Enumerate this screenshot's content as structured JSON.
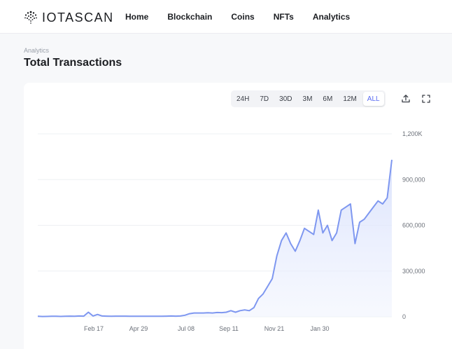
{
  "app": {
    "logo_text": "IOTASCAN"
  },
  "nav": {
    "items": [
      "Home",
      "Blockchain",
      "Coins",
      "NFTs",
      "Analytics"
    ]
  },
  "page": {
    "breadcrumb": "Analytics",
    "title": "Total Transactions"
  },
  "range_selector": {
    "options": [
      "24H",
      "7D",
      "30D",
      "3M",
      "6M",
      "12M",
      "ALL"
    ],
    "selected": "ALL"
  },
  "toolbar": {
    "icons": [
      "download-icon",
      "fullscreen-icon"
    ]
  },
  "colors": {
    "accent": "#5b6cf2",
    "line": "#7e97f0",
    "area": "#e6ebfd"
  },
  "chart_data": {
    "type": "area",
    "title": "",
    "xlabel": "",
    "ylabel": "",
    "ylim": [
      0,
      1200000
    ],
    "y_ticks": [
      0,
      300000,
      600000,
      900000,
      1200000
    ],
    "y_tick_labels": [
      "0",
      "300,000",
      "600,000",
      "900,000",
      "1,200K"
    ],
    "x_tick_labels": [
      "Feb 17",
      "Apr 29",
      "Jul 08",
      "Sep 11",
      "Nov 21",
      "Jan 30"
    ],
    "grid": true,
    "series": [
      {
        "values": [
          3000,
          2000,
          2500,
          3000,
          3500,
          2500,
          3000,
          4000,
          3000,
          5000,
          4000,
          30000,
          5000,
          15000,
          5000,
          4000,
          3000,
          4000,
          4000,
          4000,
          3000,
          3000,
          3000,
          3000,
          3000,
          3000,
          3000,
          3000,
          4000,
          5000,
          4000,
          5000,
          10000,
          20000,
          25000,
          25000,
          25000,
          26000,
          25000,
          28000,
          27000,
          30000,
          40000,
          30000,
          40000,
          45000,
          40000,
          60000,
          120000,
          150000,
          200000,
          250000,
          400000,
          500000,
          550000,
          480000,
          430000,
          500000,
          580000,
          560000,
          540000,
          700000,
          550000,
          600000,
          500000,
          550000,
          700000,
          720000,
          740000,
          480000,
          620000,
          640000,
          680000,
          720000,
          760000,
          740000,
          780000,
          1030000
        ]
      }
    ]
  }
}
